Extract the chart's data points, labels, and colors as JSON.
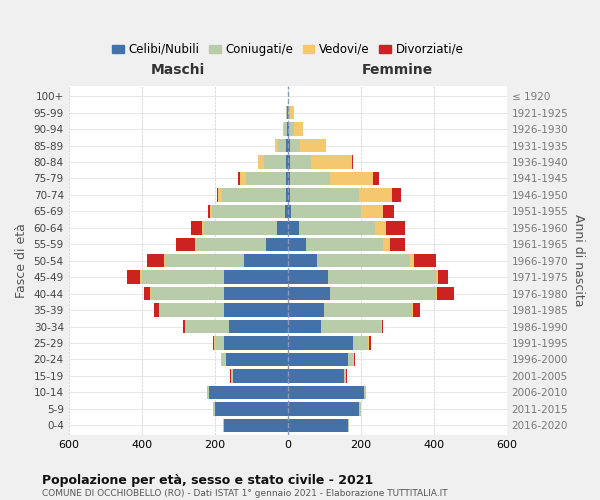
{
  "age_groups": [
    "0-4",
    "5-9",
    "10-14",
    "15-19",
    "20-24",
    "25-29",
    "30-34",
    "35-39",
    "40-44",
    "45-49",
    "50-54",
    "55-59",
    "60-64",
    "65-69",
    "70-74",
    "75-79",
    "80-84",
    "85-89",
    "90-94",
    "95-99",
    "100+"
  ],
  "birth_years": [
    "2016-2020",
    "2011-2015",
    "2006-2010",
    "2001-2005",
    "1996-2000",
    "1991-1995",
    "1986-1990",
    "1981-1985",
    "1976-1980",
    "1971-1975",
    "1966-1970",
    "1961-1965",
    "1956-1960",
    "1951-1955",
    "1946-1950",
    "1941-1945",
    "1936-1940",
    "1931-1935",
    "1926-1930",
    "1921-1925",
    "≤ 1920"
  ],
  "males": {
    "celibi": [
      175,
      200,
      215,
      150,
      170,
      175,
      160,
      175,
      175,
      175,
      120,
      60,
      30,
      8,
      5,
      5,
      5,
      4,
      3,
      2,
      0
    ],
    "coniugati": [
      3,
      5,
      5,
      5,
      10,
      25,
      120,
      175,
      200,
      225,
      215,
      190,
      200,
      200,
      175,
      110,
      60,
      22,
      8,
      3,
      0
    ],
    "vedovi": [
      0,
      0,
      0,
      1,
      2,
      2,
      1,
      2,
      3,
      5,
      5,
      5,
      5,
      5,
      10,
      15,
      15,
      8,
      3,
      1,
      0
    ],
    "divorziati": [
      0,
      0,
      0,
      1,
      2,
      2,
      5,
      15,
      15,
      35,
      45,
      50,
      30,
      5,
      5,
      5,
      0,
      0,
      0,
      0,
      0
    ]
  },
  "females": {
    "nubili": [
      165,
      195,
      210,
      155,
      165,
      180,
      90,
      100,
      115,
      110,
      80,
      50,
      30,
      10,
      5,
      5,
      5,
      5,
      4,
      2,
      0
    ],
    "coniugate": [
      3,
      5,
      5,
      5,
      15,
      40,
      165,
      240,
      290,
      295,
      255,
      210,
      210,
      190,
      190,
      110,
      60,
      30,
      12,
      5,
      1
    ],
    "vedove": [
      0,
      0,
      0,
      1,
      2,
      2,
      2,
      3,
      5,
      8,
      10,
      20,
      30,
      60,
      90,
      120,
      110,
      70,
      25,
      10,
      1
    ],
    "divorziate": [
      0,
      0,
      0,
      1,
      2,
      5,
      5,
      20,
      45,
      25,
      60,
      40,
      50,
      30,
      25,
      15,
      5,
      0,
      0,
      0,
      0
    ]
  },
  "colors": {
    "celibi": "#4472a8",
    "coniugati": "#b8ccaa",
    "vedovi": "#f5c870",
    "divorziati": "#cc2222"
  },
  "title": "Popolazione per età, sesso e stato civile - 2021",
  "subtitle": "COMUNE DI OCCHIOBELLO (RO) - Dati ISTAT 1° gennaio 2021 - Elaborazione TUTTITALIA.IT",
  "xlabel_left": "Maschi",
  "xlabel_right": "Femmine",
  "ylabel_left": "Fasce di età",
  "ylabel_right": "Anni di nascita",
  "xlim": 600,
  "legend_labels": [
    "Celibi/Nubili",
    "Coniugati/e",
    "Vedovi/e",
    "Divorziati/e"
  ],
  "background_color": "#f0f0f0",
  "plot_bg_color": "#ffffff"
}
